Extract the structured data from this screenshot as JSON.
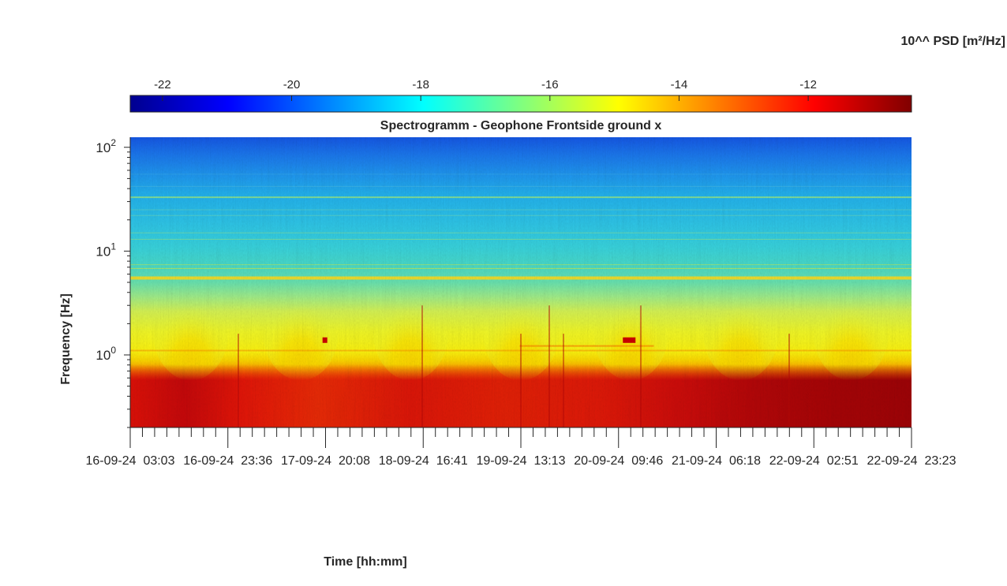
{
  "chart_data": {
    "type": "heatmap",
    "title": "Spectrogramm - Geophone Frontside ground x",
    "xlabel": "Time [hh:mm]",
    "ylabel": "Frequency [Hz]",
    "y_scale": "log",
    "ylim": [
      0.2,
      125
    ],
    "y_ticks": [
      {
        "value": 100,
        "base": "10",
        "exp": "2"
      },
      {
        "value": 10,
        "base": "10",
        "exp": "1"
      },
      {
        "value": 1,
        "base": "10",
        "exp": "0"
      }
    ],
    "x_tick_labels": [
      "16-09-24  03:03",
      "16-09-24  23:36",
      "17-09-24  20:08",
      "18-09-24  16:41",
      "19-09-24  13:13",
      "20-09-24  09:46",
      "21-09-24  06:18",
      "22-09-24  02:51",
      "22-09-24  23:23"
    ],
    "colorbar": {
      "label": "10^^ PSD [m²/Hz]",
      "colormap": "jet",
      "range": [
        -22.5,
        -10.4
      ],
      "ticks": [
        -22,
        -20,
        -18,
        -16,
        -14,
        -12
      ],
      "tick_labels": [
        "-22",
        "-20",
        "-18",
        "-16",
        "-14",
        "-12"
      ]
    },
    "features": {
      "daily_activity_peaks": 7,
      "persistent_lines_hz": [
        5.5,
        33,
        1.1
      ],
      "high_power_band_hz": [
        0.2,
        0.8
      ],
      "spot_events": [
        {
          "time": "17-09-24 20:00",
          "freq_hz": 1.4
        },
        {
          "time": "20-09-24 12:00",
          "freq_hz": 1.4
        }
      ]
    }
  }
}
